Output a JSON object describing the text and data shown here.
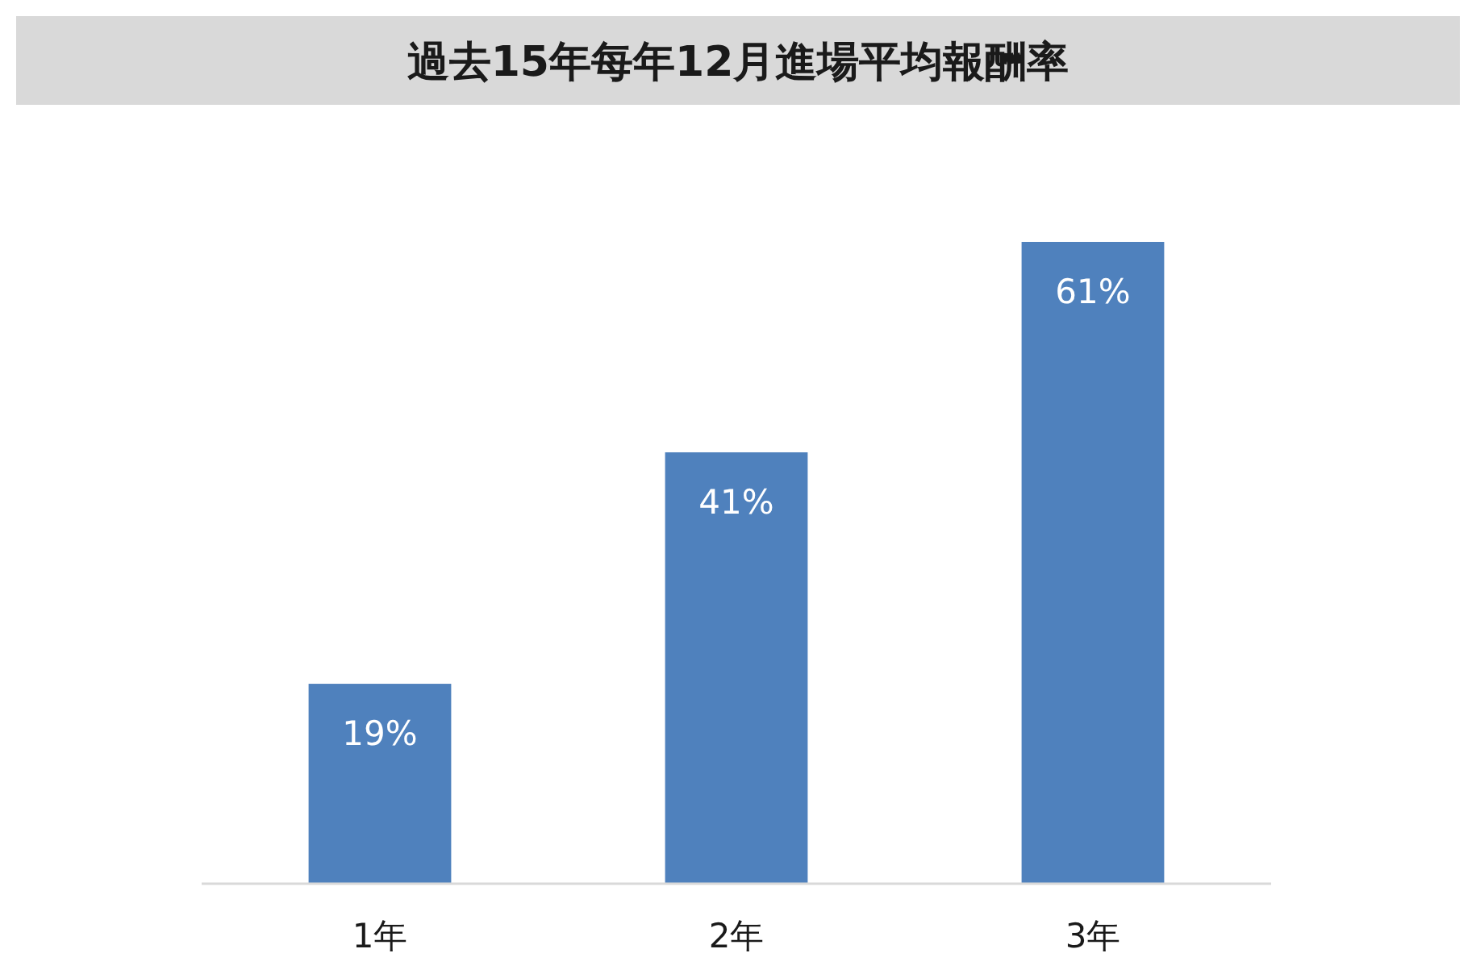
{
  "chart_data": {
    "type": "bar",
    "title": "過去15年每年12月進場平均報酬率",
    "categories": [
      "1年",
      "2年",
      "3年"
    ],
    "values": [
      19,
      41,
      61
    ],
    "value_labels": [
      "19%",
      "41%",
      "61%"
    ],
    "color": "#4f81bd",
    "tick_labels": "x"
  }
}
